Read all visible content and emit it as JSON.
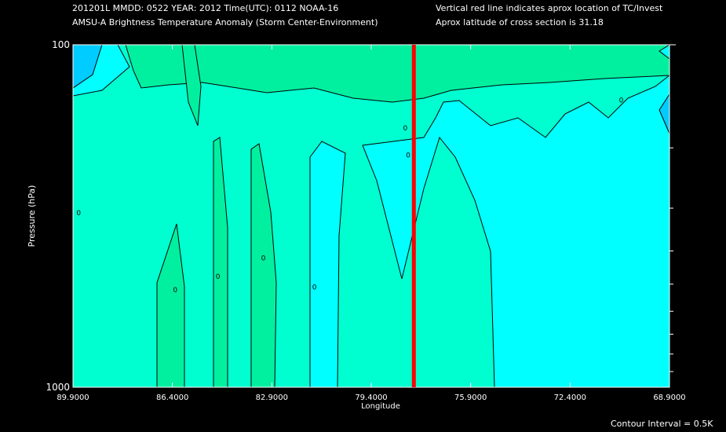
{
  "header": {
    "line1": "201201L  MMDD: 0522 YEAR: 2012 Time(UTC): 0112 NOAA-16",
    "line2": "AMSU-A Brightness Temperature Anomaly (Storm Center-Environment)",
    "right1": "Vertical red line indicates aprox location of TC/Invest",
    "right2": "Aprox latitude of cross section is 31.18"
  },
  "footer": {
    "contour_interval": "Contour Interval = 0.5K"
  },
  "colors": {
    "level_minus_1_5": "#00a8f0",
    "level_minus_1_0": "#00ccff",
    "level_minus_0_5": "#00ffff",
    "level_0_0": "#00ffd0",
    "level_0_5": "#00f0a0",
    "storm_line": "#ff0000",
    "background": "#000000"
  },
  "chart_data": {
    "type": "heatmap",
    "title": "AMSU-A Brightness Temperature Anomaly (Storm Center-Environment)",
    "xlabel": "Longitude",
    "ylabel": "Pressure (hPa)",
    "xlim": [
      89.9,
      68.9
    ],
    "ylim": [
      1000,
      100
    ],
    "y_scale": "log",
    "x_tick_labels": [
      "89.9000",
      "86.4000",
      "82.9000",
      "79.4000",
      "75.9000",
      "72.4000",
      "68.9000"
    ],
    "x_ticks": [
      89.9,
      86.4,
      82.9,
      79.4,
      75.9,
      72.4,
      68.9
    ],
    "y_tick_labels": [
      "100",
      "1000"
    ],
    "y_ticks": [
      100,
      1000
    ],
    "storm_longitude": 77.9,
    "contour_interval": 0.5,
    "contour_labels": [
      {
        "lon": 89.7,
        "p": 310,
        "label": "0"
      },
      {
        "lon": 86.3,
        "p": 520,
        "label": "0"
      },
      {
        "lon": 84.8,
        "p": 475,
        "label": "0"
      },
      {
        "lon": 83.2,
        "p": 420,
        "label": "0"
      },
      {
        "lon": 81.4,
        "p": 510,
        "label": "0"
      },
      {
        "lon": 78.2,
        "p": 175,
        "label": "0"
      },
      {
        "lon": 78.1,
        "p": 210,
        "label": "0"
      },
      {
        "lon": 70.6,
        "p": 145,
        "label": "0"
      }
    ]
  }
}
